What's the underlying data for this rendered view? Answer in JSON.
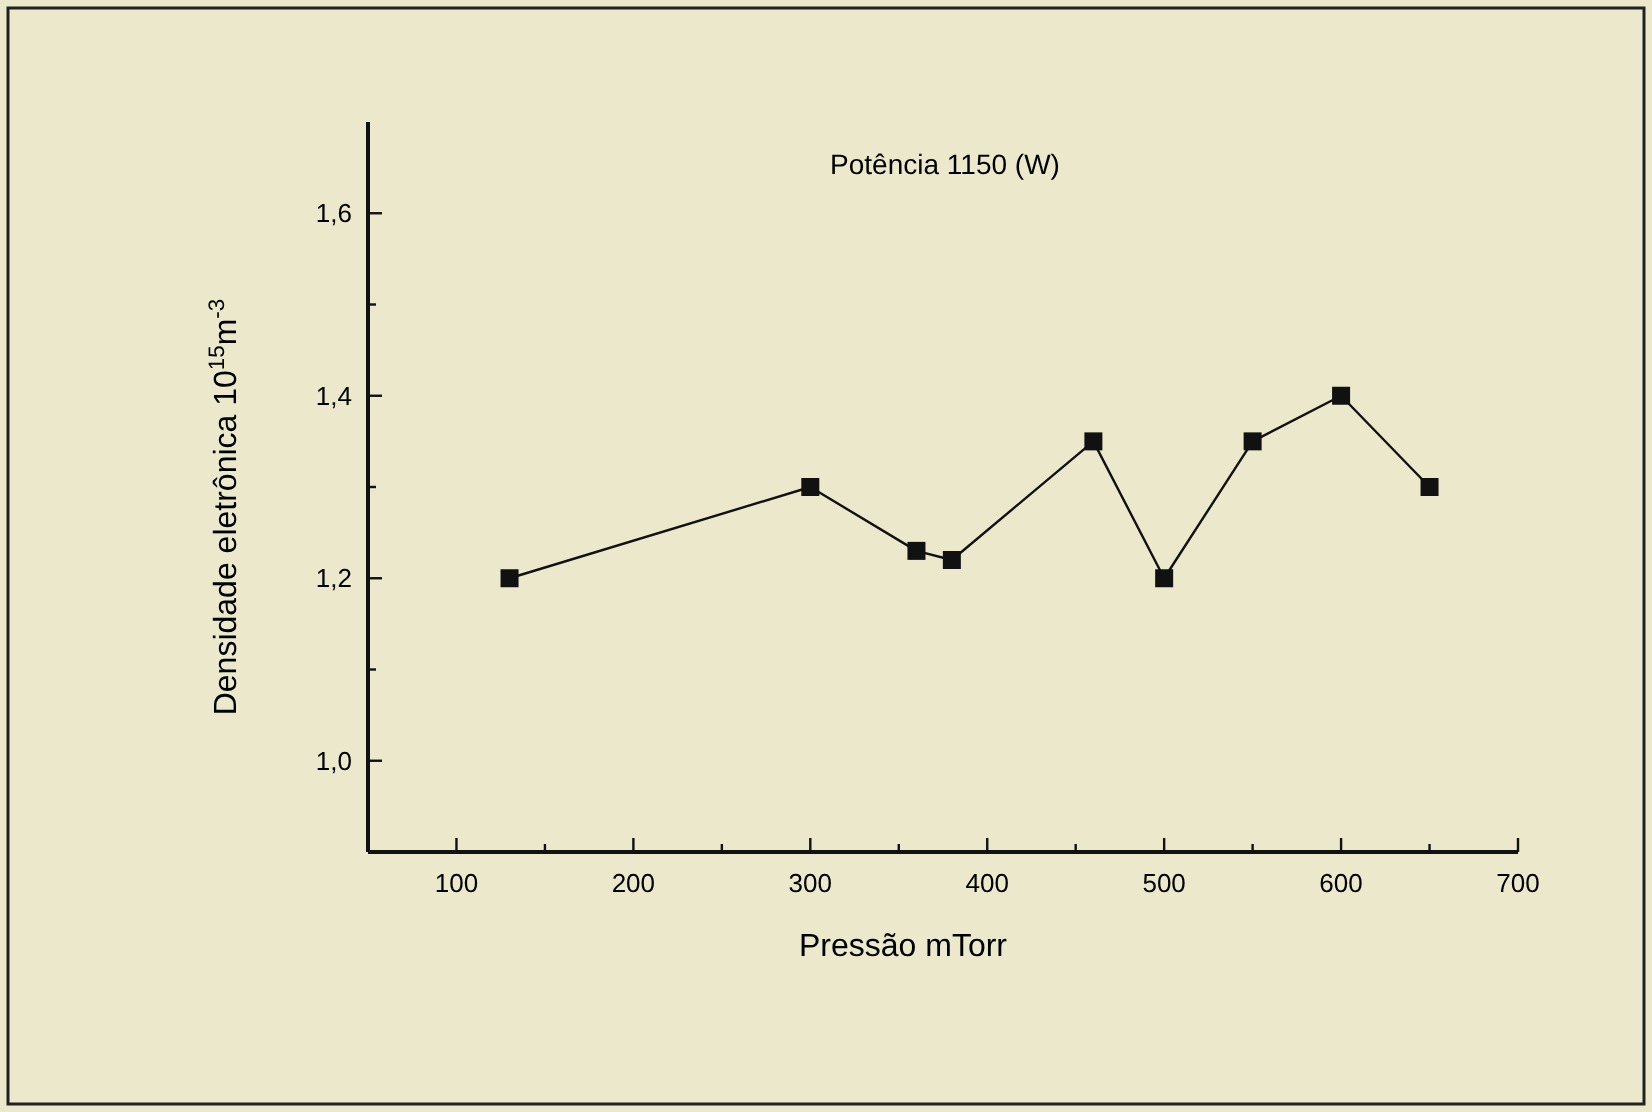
{
  "chart_data": {
    "type": "line",
    "title": "Potência 1150 (W)",
    "xlabel": "Pressão mTorr",
    "ylabel": "Densidade eletrônica 10$^{15}$m$^{-3}$",
    "x": [
      130,
      300,
      360,
      380,
      460,
      500,
      550,
      600,
      650
    ],
    "series": [
      {
        "color": "#111111",
        "values": [
          1.2,
          1.3,
          1.23,
          1.22,
          1.35,
          1.2,
          1.35,
          1.4,
          1.3
        ]
      }
    ],
    "xlim": [
      50,
      700
    ],
    "xticks": [
      100,
      {
        "value": 150,
        "label": null
      },
      200,
      {
        "value": 250,
        "label": null
      },
      300,
      {
        "value": 350,
        "label": null
      },
      400,
      {
        "value": 450,
        "label": null
      },
      500,
      {
        "value": 550,
        "label": null
      },
      600,
      {
        "value": 650,
        "label": null
      },
      700
    ],
    "ylim": [
      0.9,
      1.7
    ],
    "yticks": [
      {
        "value": 1.0,
        "label": "1,0"
      },
      {
        "value": 1.1,
        "label": null
      },
      {
        "value": 1.2,
        "label": "1,2"
      },
      {
        "value": 1.3,
        "label": null
      },
      {
        "value": 1.4,
        "label": "1,4"
      },
      {
        "value": 1.5,
        "label": null
      },
      {
        "value": 1.6,
        "label": "1,6"
      }
    ],
    "grid": false,
    "marker": "square",
    "line_style": "solid"
  }
}
